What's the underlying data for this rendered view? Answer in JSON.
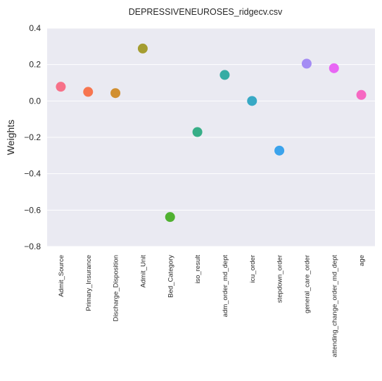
{
  "chart_data": {
    "type": "scatter",
    "title": "DEPRESSIVENEUROSES_ridgecv.csv",
    "xlabel": "",
    "ylabel": "Weights",
    "ylim": [
      -0.8,
      0.4
    ],
    "yticks": [
      0.4,
      0.2,
      0.0,
      -0.2,
      -0.4,
      -0.6,
      -0.8
    ],
    "ytick_labels": [
      "0.4",
      "0.2",
      "0.0",
      "−0.2",
      "−0.4",
      "−0.6",
      "−0.8"
    ],
    "grid": true,
    "legend": false,
    "categories": [
      "Admit_Source",
      "Primary_Insurance",
      "Discharge_Disposition",
      "Admit_Unit",
      "Bed_Category",
      "iso_result",
      "adm_order_md_dept",
      "icu_order",
      "stepdown_order",
      "general_care_order",
      "attending_change_order_md_dept",
      "age"
    ],
    "values": [
      0.078,
      0.05,
      0.043,
      0.288,
      -0.638,
      -0.171,
      0.143,
      0.0,
      -0.273,
      0.205,
      0.18,
      0.033
    ],
    "colors": [
      "#f77189",
      "#f7754f",
      "#d18f31",
      "#a59d31",
      "#50b131",
      "#37ae87",
      "#35aca4",
      "#38a9c5",
      "#3ba3ec",
      "#a48cf4",
      "#e866f4",
      "#f668c2"
    ],
    "background_color": "#eaeaf2",
    "grid_color": "#ffffff"
  }
}
